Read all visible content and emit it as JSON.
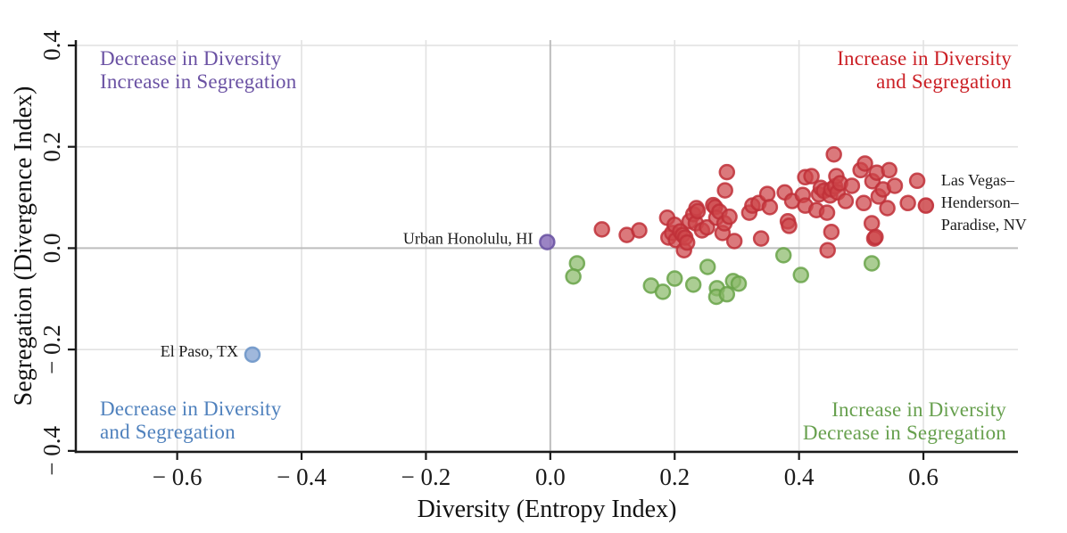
{
  "figure": {
    "background": "#ffffff"
  },
  "chart_data": {
    "type": "scatter",
    "title": "",
    "xlabel": "Diversity (Entropy Index)",
    "ylabel": "Segregation (Divergence Index)",
    "xlim": [
      -0.763,
      0.752
    ],
    "ylim": [
      -0.402,
      0.4105
    ],
    "grid": {
      "on": true,
      "gridline_color": "#e2e2e2",
      "zero_line_color": "#bdbdbd"
    },
    "axis_color": "#1a1a1a",
    "x_ticks": {
      "values": [
        -0.6,
        -0.4,
        -0.2,
        0.0,
        0.2,
        0.4,
        0.6
      ],
      "labels": [
        "− 0.6",
        "− 0.4",
        "− 0.2",
        "0.0",
        "0.2",
        "0.4",
        "0.6"
      ]
    },
    "y_ticks": {
      "values": [
        -0.4,
        -0.2,
        0.0,
        0.2,
        0.4
      ],
      "labels": [
        "− 0.4",
        "− 0.2",
        "0.0",
        "0.2",
        "0.4"
      ]
    },
    "marker": {
      "radius": 8,
      "stroke_width": 2.5,
      "fill_opacity": 0.72
    },
    "quadrant_labels": {
      "top_left": {
        "line1": "Decrease in Diversity",
        "line2": "Increase in Segregation",
        "color": "#6a51a3"
      },
      "top_right": {
        "line1": "Increase in Diversity",
        "line2": "and Segregation",
        "color": "#cb2026"
      },
      "bottom_left": {
        "line1": "Decrease in Diversity",
        "line2": "and Segregation",
        "color": "#4f81bd"
      },
      "bottom_right": {
        "line1": "Increase in Diversity",
        "line2": "Decrease in Segregation",
        "color": "#67a04e"
      }
    },
    "series": [
      {
        "name": "increase-diversity-increase-segregation",
        "fill": "#cd4549",
        "stroke": "#c03038",
        "points": [
          [
            0.083,
            0.037
          ],
          [
            0.123,
            0.026
          ],
          [
            0.143,
            0.035
          ],
          [
            0.188,
            0.06
          ],
          [
            0.19,
            0.021
          ],
          [
            0.196,
            0.03
          ],
          [
            0.2,
            0.046
          ],
          [
            0.202,
            0.016
          ],
          [
            0.209,
            0.033
          ],
          [
            0.213,
            0.026
          ],
          [
            0.215,
            -0.004
          ],
          [
            0.217,
            0.021
          ],
          [
            0.22,
            0.011
          ],
          [
            0.224,
            0.053
          ],
          [
            0.23,
            0.067
          ],
          [
            0.234,
            0.049
          ],
          [
            0.235,
            0.079
          ],
          [
            0.237,
            0.073
          ],
          [
            0.244,
            0.035
          ],
          [
            0.252,
            0.041
          ],
          [
            0.262,
            0.085
          ],
          [
            0.265,
            0.081
          ],
          [
            0.267,
            0.06
          ],
          [
            0.272,
            0.072
          ],
          [
            0.277,
            0.03
          ],
          [
            0.28,
            0.049
          ],
          [
            0.281,
            0.114
          ],
          [
            0.284,
            0.15
          ],
          [
            0.288,
            0.062
          ],
          [
            0.296,
            0.014
          ],
          [
            0.32,
            0.07
          ],
          [
            0.325,
            0.084
          ],
          [
            0.335,
            0.089
          ],
          [
            0.339,
            0.019
          ],
          [
            0.349,
            0.107
          ],
          [
            0.353,
            0.081
          ],
          [
            0.377,
            0.11
          ],
          [
            0.382,
            0.053
          ],
          [
            0.384,
            0.044
          ],
          [
            0.389,
            0.093
          ],
          [
            0.406,
            0.105
          ],
          [
            0.41,
            0.14
          ],
          [
            0.41,
            0.084
          ],
          [
            0.42,
            0.142
          ],
          [
            0.428,
            0.075
          ],
          [
            0.432,
            0.106
          ],
          [
            0.435,
            0.119
          ],
          [
            0.44,
            0.113
          ],
          [
            0.445,
            0.07
          ],
          [
            0.446,
            -0.004
          ],
          [
            0.45,
            0.104
          ],
          [
            0.452,
            0.116
          ],
          [
            0.452,
            0.032
          ],
          [
            0.456,
            0.185
          ],
          [
            0.458,
            0.122
          ],
          [
            0.46,
            0.142
          ],
          [
            0.462,
            0.11
          ],
          [
            0.466,
            0.128
          ],
          [
            0.475,
            0.093
          ],
          [
            0.485,
            0.123
          ],
          [
            0.499,
            0.154
          ],
          [
            0.504,
            0.089
          ],
          [
            0.506,
            0.167
          ],
          [
            0.517,
            0.049
          ],
          [
            0.518,
            0.132
          ],
          [
            0.521,
            0.019
          ],
          [
            0.523,
            0.022
          ],
          [
            0.525,
            0.149
          ],
          [
            0.528,
            0.102
          ],
          [
            0.535,
            0.116
          ],
          [
            0.542,
            0.079
          ],
          [
            0.545,
            0.154
          ],
          [
            0.554,
            0.123
          ],
          [
            0.575,
            0.089
          ],
          [
            0.59,
            0.133
          ]
        ]
      },
      {
        "name": "increase-diversity-decrease-segregation",
        "fill": "#8aba6a",
        "stroke": "#68a349",
        "points": [
          [
            0.043,
            -0.03
          ],
          [
            0.037,
            -0.056
          ],
          [
            0.162,
            -0.074
          ],
          [
            0.181,
            -0.086
          ],
          [
            0.2,
            -0.06
          ],
          [
            0.23,
            -0.072
          ],
          [
            0.253,
            -0.037
          ],
          [
            0.268,
            -0.079
          ],
          [
            0.267,
            -0.096
          ],
          [
            0.284,
            -0.091
          ],
          [
            0.294,
            -0.065
          ],
          [
            0.303,
            -0.07
          ],
          [
            0.375,
            -0.014
          ],
          [
            0.403,
            -0.053
          ],
          [
            0.517,
            -0.03
          ]
        ]
      }
    ],
    "labeled_points": [
      {
        "label": "Urban Honolulu, HI",
        "label_lines": [
          "Urban Honolulu, HI"
        ],
        "x": -0.005,
        "y": 0.012,
        "fill": "#8a6fba",
        "stroke": "#6d55a4",
        "label_side": "left",
        "label_color": "#1a1a1a"
      },
      {
        "label": "El Paso, TX",
        "label_lines": [
          "El Paso, TX"
        ],
        "x": -0.479,
        "y": -0.21,
        "fill": "#8facd6",
        "stroke": "#6f97c9",
        "label_side": "left",
        "label_color": "#1a1a1a"
      },
      {
        "label": "Las Vegas–Henderson–Paradise, NV",
        "label_lines": [
          "Las Vegas–",
          "Henderson–",
          "Paradise, NV"
        ],
        "x": 0.604,
        "y": 0.084,
        "fill": "#cd4549",
        "stroke": "#c03038",
        "label_side": "right",
        "label_color": "#1a1a1a"
      }
    ]
  }
}
